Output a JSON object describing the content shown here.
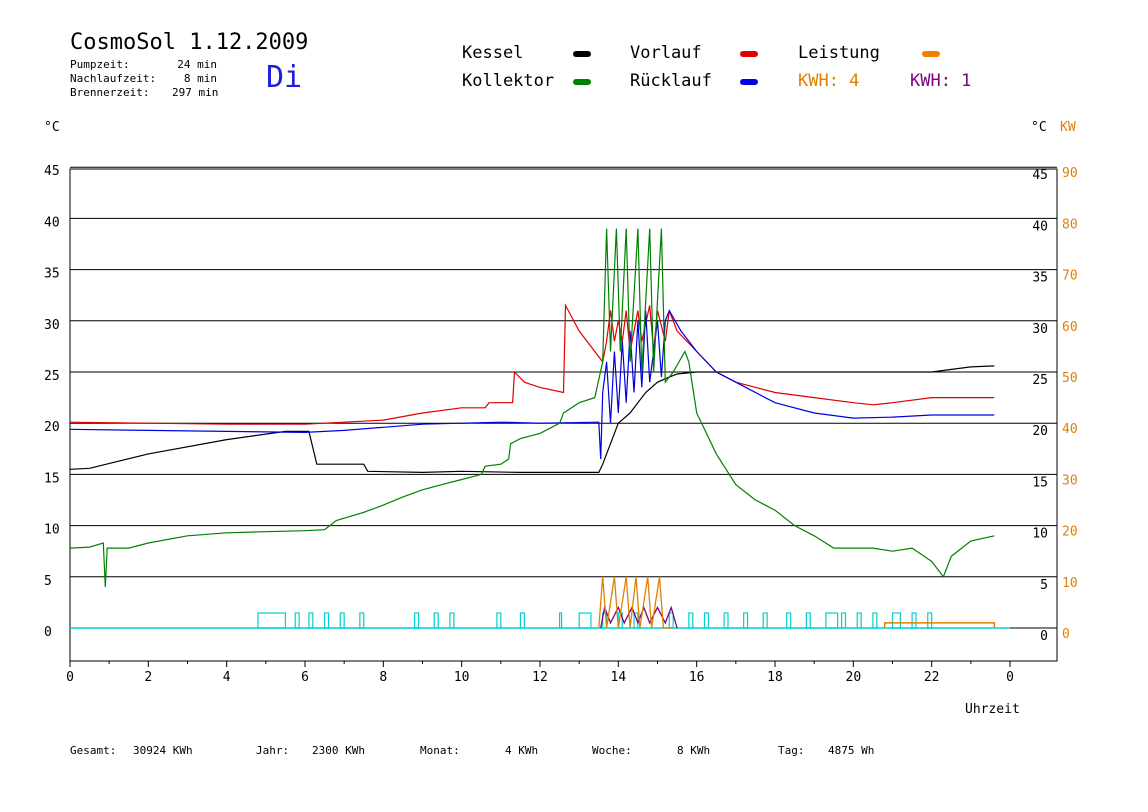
{
  "header": {
    "title": "CosmoSol 1.12.2009",
    "day": "Di",
    "stats": [
      {
        "label": "Pumpzeit:",
        "value": "24 min"
      },
      {
        "label": "Nachlaufzeit:",
        "value": "8 min"
      },
      {
        "label": "Brennerzeit:",
        "value": "297 min"
      }
    ]
  },
  "legend": [
    {
      "label": "Kessel",
      "color": "#000000"
    },
    {
      "label": "Vorlauf",
      "color": "#e00000"
    },
    {
      "label": "Leistung",
      "color": "#f08000"
    },
    {
      "label": "Kollektor",
      "color": "#008000"
    },
    {
      "label": "Rücklauf",
      "color": "#0000e0"
    }
  ],
  "kwh": [
    {
      "label": "KWH: 4",
      "color": "#e08000"
    },
    {
      "label": "KWH: 1",
      "color": "#800080"
    }
  ],
  "axes": {
    "left_unit": "°C",
    "right_unit_c": "°C",
    "right_unit_kw": "KW",
    "x_label": "Uhrzeit"
  },
  "footer": [
    {
      "label": "Gesamt:",
      "value": "30924 KWh"
    },
    {
      "label": "Jahr:",
      "value": "2300 KWh"
    },
    {
      "label": "Monat:",
      "value": "4 KWh"
    },
    {
      "label": "Woche:",
      "value": "8 KWh"
    },
    {
      "label": "Tag:",
      "value": "4875 Wh"
    }
  ],
  "chart_data": {
    "type": "line",
    "xlim": [
      0,
      24
    ],
    "ylim": [
      0,
      45
    ],
    "y2lim": [
      0,
      90
    ],
    "x_ticks": [
      "0",
      "2",
      "4",
      "6",
      "8",
      "10",
      "12",
      "14",
      "16",
      "18",
      "20",
      "22",
      "0"
    ],
    "y_ticks": [
      "0",
      "5",
      "10",
      "15",
      "20",
      "25",
      "30",
      "35",
      "40",
      "45"
    ],
    "y2_ticks_kw": [
      "0",
      "10",
      "20",
      "30",
      "40",
      "50",
      "60",
      "70",
      "80",
      "90"
    ],
    "grid": true,
    "series": [
      {
        "name": "Kessel",
        "color": "#000000",
        "points": [
          [
            0,
            15.5
          ],
          [
            0.5,
            15.6
          ],
          [
            2,
            17
          ],
          [
            4,
            18.4
          ],
          [
            5.5,
            19.2
          ],
          [
            6.1,
            19.2
          ],
          [
            6.3,
            16
          ],
          [
            7.5,
            16
          ],
          [
            7.6,
            15.3
          ],
          [
            9,
            15.2
          ],
          [
            10,
            15.3
          ],
          [
            11.5,
            15.2
          ],
          [
            13.5,
            15.2
          ],
          [
            13.6,
            16
          ],
          [
            13.8,
            18
          ],
          [
            14,
            20
          ],
          [
            14.3,
            21
          ],
          [
            14.5,
            22
          ],
          [
            14.7,
            23
          ],
          [
            15,
            24
          ],
          [
            15.3,
            24.5
          ],
          [
            15.5,
            24.8
          ],
          [
            16,
            25
          ],
          [
            18,
            25
          ],
          [
            20,
            25
          ],
          [
            22,
            25
          ],
          [
            23,
            25.5
          ],
          [
            23.6,
            25.6
          ]
        ]
      },
      {
        "name": "Vorlauf",
        "color": "#e00000",
        "points": [
          [
            0,
            20.1
          ],
          [
            2,
            20
          ],
          [
            4,
            19.9
          ],
          [
            6,
            19.9
          ],
          [
            8,
            20.3
          ],
          [
            9,
            21
          ],
          [
            10,
            21.5
          ],
          [
            10.6,
            21.5
          ],
          [
            10.7,
            22
          ],
          [
            11.3,
            22
          ],
          [
            11.35,
            25
          ],
          [
            11.6,
            24
          ],
          [
            12,
            23.5
          ],
          [
            12.6,
            23
          ],
          [
            12.65,
            31.5
          ],
          [
            13,
            29
          ],
          [
            13.4,
            27
          ],
          [
            13.6,
            26
          ],
          [
            13.7,
            28
          ],
          [
            13.8,
            31
          ],
          [
            13.9,
            28
          ],
          [
            14,
            30
          ],
          [
            14.1,
            28
          ],
          [
            14.2,
            31
          ],
          [
            14.3,
            27
          ],
          [
            14.5,
            31
          ],
          [
            14.6,
            28
          ],
          [
            14.8,
            31.5
          ],
          [
            14.9,
            27
          ],
          [
            15,
            31
          ],
          [
            15.2,
            28
          ],
          [
            15.3,
            31
          ],
          [
            15.5,
            29
          ],
          [
            16,
            27
          ],
          [
            16.5,
            25
          ],
          [
            17,
            24
          ],
          [
            18,
            23
          ],
          [
            19,
            22.5
          ],
          [
            20,
            22
          ],
          [
            20.5,
            21.8
          ],
          [
            21,
            22
          ],
          [
            22,
            22.5
          ],
          [
            23,
            22.5
          ],
          [
            23.6,
            22.5
          ]
        ]
      },
      {
        "name": "Rücklauf",
        "color": "#0000e0",
        "points": [
          [
            0,
            19.4
          ],
          [
            2,
            19.3
          ],
          [
            4,
            19.2
          ],
          [
            6,
            19.1
          ],
          [
            7,
            19.3
          ],
          [
            8,
            19.6
          ],
          [
            9,
            19.9
          ],
          [
            10,
            20
          ],
          [
            11,
            20.1
          ],
          [
            12,
            20
          ],
          [
            13.5,
            20.1
          ],
          [
            13.55,
            16.5
          ],
          [
            13.6,
            23
          ],
          [
            13.7,
            26
          ],
          [
            13.8,
            20
          ],
          [
            13.9,
            27
          ],
          [
            14,
            21
          ],
          [
            14.1,
            28
          ],
          [
            14.2,
            22
          ],
          [
            14.3,
            29
          ],
          [
            14.4,
            23
          ],
          [
            14.5,
            30
          ],
          [
            14.6,
            23.5
          ],
          [
            14.7,
            31
          ],
          [
            14.8,
            24
          ],
          [
            15,
            30
          ],
          [
            15.1,
            24.5
          ],
          [
            15.2,
            30
          ],
          [
            15.3,
            31
          ],
          [
            15.6,
            29
          ],
          [
            16,
            27
          ],
          [
            16.5,
            25
          ],
          [
            17,
            24
          ],
          [
            18,
            22
          ],
          [
            19,
            21
          ],
          [
            20,
            20.5
          ],
          [
            21,
            20.6
          ],
          [
            22,
            20.8
          ],
          [
            23,
            20.8
          ],
          [
            23.6,
            20.8
          ]
        ]
      },
      {
        "name": "Kollektor",
        "color": "#008000",
        "points": [
          [
            0,
            7.8
          ],
          [
            0.5,
            7.9
          ],
          [
            0.85,
            8.3
          ],
          [
            0.9,
            4
          ],
          [
            0.95,
            7.8
          ],
          [
            1.5,
            7.8
          ],
          [
            2,
            8.3
          ],
          [
            3,
            9
          ],
          [
            4,
            9.3
          ],
          [
            5,
            9.4
          ],
          [
            6,
            9.5
          ],
          [
            6.5,
            9.6
          ],
          [
            6.8,
            10.5
          ],
          [
            7.5,
            11.3
          ],
          [
            8,
            12
          ],
          [
            8.5,
            12.8
          ],
          [
            9,
            13.5
          ],
          [
            9.5,
            14
          ],
          [
            10,
            14.5
          ],
          [
            10.5,
            15
          ],
          [
            10.6,
            15.8
          ],
          [
            11,
            16
          ],
          [
            11.2,
            16.5
          ],
          [
            11.25,
            18
          ],
          [
            11.5,
            18.5
          ],
          [
            12,
            19
          ],
          [
            12.5,
            20
          ],
          [
            12.6,
            21
          ],
          [
            13,
            22
          ],
          [
            13.4,
            22.5
          ],
          [
            13.6,
            26
          ],
          [
            13.7,
            39
          ],
          [
            13.8,
            27
          ],
          [
            13.95,
            39
          ],
          [
            14.05,
            27
          ],
          [
            14.2,
            39
          ],
          [
            14.3,
            26
          ],
          [
            14.5,
            39
          ],
          [
            14.6,
            25
          ],
          [
            14.8,
            39
          ],
          [
            14.9,
            25
          ],
          [
            15.1,
            39
          ],
          [
            15.2,
            24
          ],
          [
            15.4,
            25
          ],
          [
            15.7,
            27
          ],
          [
            15.8,
            26
          ],
          [
            16,
            21
          ],
          [
            16.5,
            17
          ],
          [
            17,
            14
          ],
          [
            17.5,
            12.5
          ],
          [
            18,
            11.5
          ],
          [
            18.5,
            10
          ],
          [
            19,
            9
          ],
          [
            19.5,
            7.8
          ],
          [
            20,
            7.8
          ],
          [
            20.5,
            7.8
          ],
          [
            21,
            7.5
          ],
          [
            21.5,
            7.8
          ],
          [
            22,
            6.5
          ],
          [
            22.3,
            5
          ],
          [
            22.5,
            7
          ],
          [
            23,
            8.5
          ],
          [
            23.6,
            9
          ]
        ]
      }
    ],
    "leistung_kw": {
      "name": "Leistung",
      "color": "#e08000",
      "points": [
        [
          13.5,
          0
        ],
        [
          13.6,
          10
        ],
        [
          13.7,
          0
        ],
        [
          13.9,
          10
        ],
        [
          14,
          0
        ],
        [
          14.2,
          10
        ],
        [
          14.3,
          0
        ],
        [
          14.45,
          10
        ],
        [
          14.55,
          0
        ],
        [
          14.75,
          10
        ],
        [
          14.85,
          0
        ],
        [
          15.05,
          10
        ],
        [
          15.15,
          0
        ],
        [
          15.4,
          0
        ]
      ]
    },
    "leistung2_kw": {
      "color": "#800080",
      "points": [
        [
          13.55,
          0
        ],
        [
          13.65,
          4
        ],
        [
          13.8,
          1
        ],
        [
          14,
          4
        ],
        [
          14.15,
          1
        ],
        [
          14.35,
          4
        ],
        [
          14.5,
          1
        ],
        [
          14.65,
          4
        ],
        [
          14.8,
          1
        ],
        [
          15,
          4
        ],
        [
          15.2,
          1
        ],
        [
          15.35,
          4
        ],
        [
          15.5,
          0
        ]
      ]
    },
    "pump_kw": {
      "color": "#00d0d0",
      "intervals": [
        [
          4.8,
          5.5
        ],
        [
          5.75,
          5.85
        ],
        [
          6.1,
          6.2
        ],
        [
          6.5,
          6.6
        ],
        [
          6.9,
          7.0
        ],
        [
          7.4,
          7.5
        ],
        [
          8.8,
          8.9
        ],
        [
          9.3,
          9.4
        ],
        [
          9.7,
          9.8
        ],
        [
          10.9,
          11.0
        ],
        [
          11.5,
          11.6
        ],
        [
          12.5,
          12.55
        ],
        [
          13.0,
          13.3
        ],
        [
          13.6,
          13.7
        ],
        [
          14.0,
          14.1
        ],
        [
          14.4,
          14.5
        ],
        [
          15.3,
          15.4
        ],
        [
          15.8,
          15.9
        ],
        [
          16.2,
          16.3
        ],
        [
          16.7,
          16.8
        ],
        [
          17.2,
          17.3
        ],
        [
          17.7,
          17.8
        ],
        [
          18.3,
          18.4
        ],
        [
          18.8,
          18.9
        ],
        [
          19.3,
          19.6
        ],
        [
          19.7,
          19.8
        ],
        [
          20.1,
          20.2
        ],
        [
          20.5,
          20.6
        ],
        [
          21.0,
          21.2
        ],
        [
          21.5,
          21.6
        ],
        [
          21.9,
          22.0
        ]
      ]
    },
    "orange_bar_kw": {
      "color": "#e08000",
      "start": 20.8,
      "end": 23.6,
      "level": 1
    }
  }
}
